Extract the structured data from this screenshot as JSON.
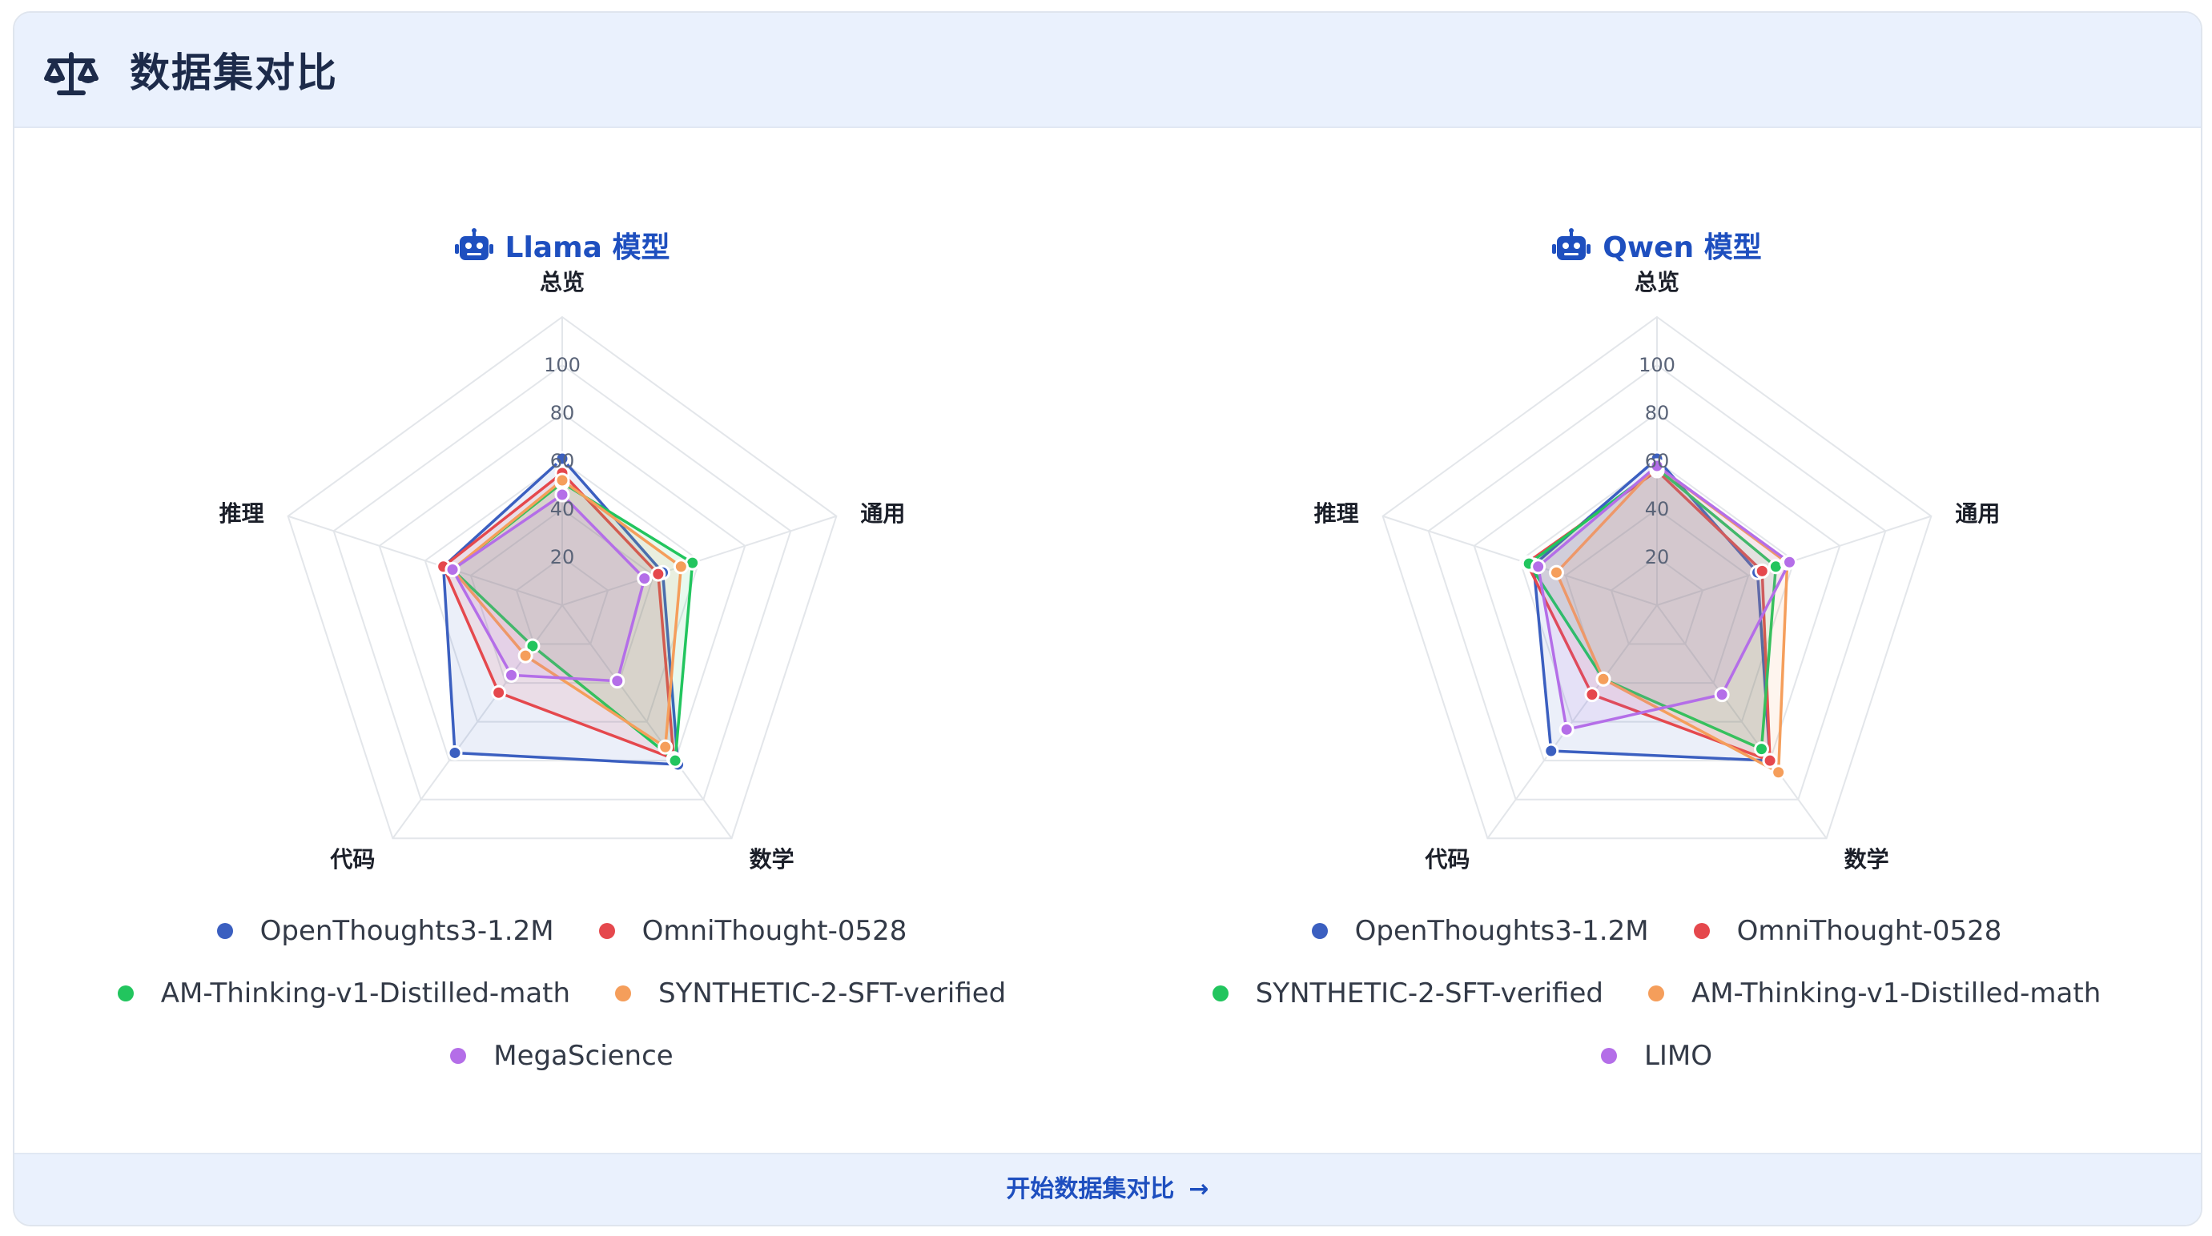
{
  "header": {
    "title": "数据集对比",
    "icon": "balance-scale-icon"
  },
  "footer": {
    "link_label": "开始数据集对比",
    "arrow": "→"
  },
  "colors": {
    "grid": "#e3e6ea",
    "tick": "#5a6478",
    "axis_label": "#1b1f29",
    "title": "#1e4fbf"
  },
  "chart_data": [
    {
      "type": "radar",
      "title": "Llama 模型",
      "axes": [
        "总览",
        "通用",
        "数学",
        "代码",
        "推理"
      ],
      "r_ticks": [
        20,
        40,
        60,
        80,
        100
      ],
      "rlim": [
        0,
        100
      ],
      "series": [
        {
          "name": "OpenThoughts3-1.2M",
          "color": "#3b5fc0",
          "values": [
            61,
            44,
            82,
            76,
            52
          ]
        },
        {
          "name": "OmniThought-0528",
          "color": "#e5484d",
          "values": [
            55,
            42,
            79,
            45,
            52
          ]
        },
        {
          "name": "AM-Thinking-v1-Distilled-math",
          "color": "#22c55e",
          "values": [
            51,
            57,
            80,
            21,
            48
          ]
        },
        {
          "name": "SYNTHETIC-2-SFT-verified",
          "color": "#f59e5b",
          "values": [
            52,
            52,
            73,
            26,
            48
          ]
        },
        {
          "name": "MegaScience",
          "color": "#b46ee8",
          "values": [
            46,
            36,
            39,
            36,
            48
          ]
        }
      ]
    },
    {
      "type": "radar",
      "title": "Qwen 模型",
      "axes": [
        "总览",
        "通用",
        "数学",
        "代码",
        "推理"
      ],
      "r_ticks": [
        20,
        40,
        60,
        80,
        100
      ],
      "rlim": [
        0,
        100
      ],
      "series": [
        {
          "name": "OpenThoughts3-1.2M",
          "color": "#3b5fc0",
          "values": [
            61,
            44,
            80,
            75,
            54
          ]
        },
        {
          "name": "OmniThought-0528",
          "color": "#e5484d",
          "values": [
            56,
            46,
            80,
            46,
            57
          ]
        },
        {
          "name": "SYNTHETIC-2-SFT-verified",
          "color": "#22c55e",
          "values": [
            57,
            52,
            74,
            38,
            56
          ]
        },
        {
          "name": "AM-Thinking-v1-Distilled-math",
          "color": "#f59e5b",
          "values": [
            58,
            57,
            86,
            38,
            44
          ]
        },
        {
          "name": "LIMO",
          "color": "#b46ee8",
          "values": [
            58,
            58,
            46,
            64,
            52
          ]
        }
      ]
    }
  ]
}
